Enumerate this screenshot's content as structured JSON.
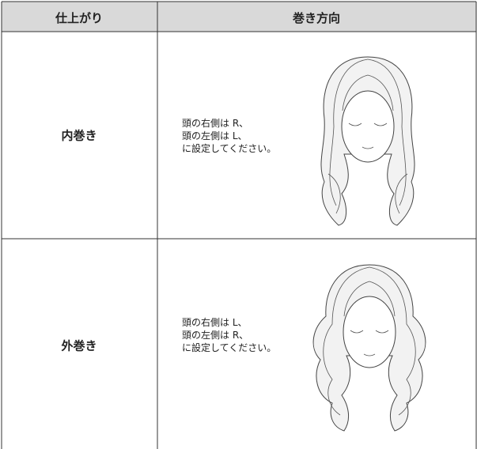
{
  "table": {
    "header": [
      "仕上がり",
      "巻き方向"
    ],
    "rows": [
      {
        "finish": "内巻き",
        "lines": [
          "頭の右側は R、",
          "頭の左側は L、",
          "に設定してください。"
        ]
      },
      {
        "finish": "外巻き",
        "lines": [
          "頭の右側は L、",
          "頭の左側は R、",
          "に設定してください。"
        ]
      }
    ]
  }
}
